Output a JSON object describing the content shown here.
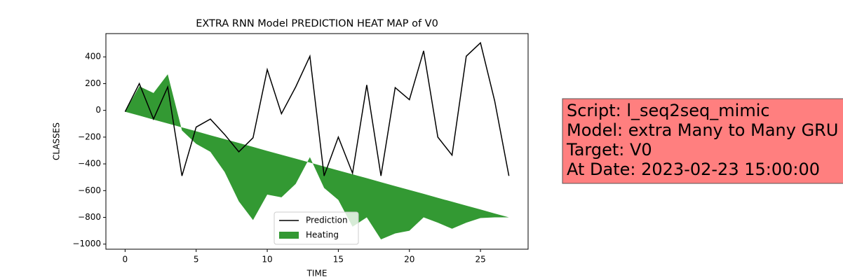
{
  "chart_data": {
    "type": "line",
    "title": "EXTRA RNN Model PREDICTION HEAT MAP of V0",
    "x_label": "TIME",
    "y_label": "CLASSES",
    "x": [
      0,
      1,
      2,
      3,
      4,
      5,
      6,
      7,
      8,
      9,
      10,
      11,
      12,
      13,
      14,
      15,
      16,
      17,
      18,
      19,
      20,
      21,
      22,
      23,
      24,
      25,
      26,
      27
    ],
    "series": [
      {
        "name": "Prediction",
        "color": "#000000",
        "kind": "line",
        "values": [
          -10,
          200,
          -65,
          175,
          -490,
          -125,
          -65,
          -180,
          -310,
          -205,
          305,
          -25,
          175,
          405,
          -490,
          -200,
          -470,
          190,
          -490,
          170,
          80,
          445,
          -200,
          -335,
          405,
          505,
          70,
          -490
        ]
      },
      {
        "name": "Heating",
        "color": "#339933",
        "kind": "fill_between",
        "values": [
          -10,
          180,
          130,
          270,
          -150,
          -250,
          -310,
          -460,
          -680,
          -820,
          -630,
          -650,
          -550,
          -350,
          -580,
          -670,
          -870,
          -800,
          -965,
          -920,
          -900,
          -800,
          -840,
          -885,
          -840,
          -805,
          -800,
          -800
        ],
        "baseline": [
          -10,
          -39,
          -69,
          -98,
          -127,
          -156,
          -186,
          -215,
          -244,
          -273,
          -303,
          -332,
          -361,
          -390,
          -420,
          -449,
          -478,
          -507,
          -537,
          -566,
          -595,
          -624,
          -654,
          -683,
          -712,
          -741,
          -771,
          -800
        ]
      }
    ],
    "xlim": [
      -1.35,
      28.35
    ],
    "ylim": [
      -1038,
      574
    ],
    "xticks": [
      0,
      5,
      10,
      15,
      20,
      25
    ],
    "yticks": [
      {
        "value": -1000,
        "label": "−1000"
      },
      {
        "value": -800,
        "label": "−800"
      },
      {
        "value": -600,
        "label": "−600"
      },
      {
        "value": -400,
        "label": "−400"
      },
      {
        "value": -200,
        "label": "−200"
      },
      0,
      200,
      400
    ],
    "legend": "lower center",
    "grid": false,
    "annotation": [
      "Script: l_seq2seq_mimic",
      "Model: extra Many to Many GRU",
      "Target: V0",
      "At Date: 2023-02-23 15:00:00"
    ]
  }
}
